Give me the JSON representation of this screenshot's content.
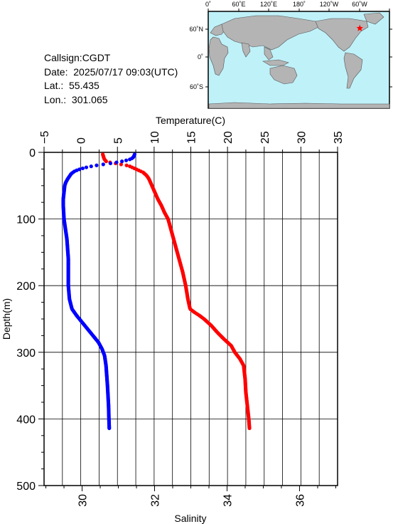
{
  "info": {
    "callsign": "Callsign:CGDT",
    "date": "Date:  2025/07/17 09:03(UTC)",
    "lat": "Lat.:  55.435",
    "lon": "Lon.:  301.065"
  },
  "map": {
    "lon_labels": [
      "0˚",
      "60˚E",
      "120˚E",
      "180˚",
      "120˚W",
      "60˚W"
    ],
    "lat_labels": [
      "60˚N",
      "0˚",
      "60˚S"
    ],
    "station_lat": 55.435,
    "station_lon": 301.065,
    "ocean_color": "#bff1f9",
    "land_color": "#b4b4b4",
    "marker_color": "#ff0000"
  },
  "chart_data": {
    "type": "line",
    "title": "",
    "top_axis": {
      "label": "Temperature(C)",
      "range": [
        -5,
        35
      ],
      "ticks": [
        "−5",
        "0",
        "5",
        "10",
        "15",
        "20",
        "25",
        "30",
        "35"
      ]
    },
    "bottom_axis": {
      "label": "Salinity",
      "range": [
        28.95,
        37.05
      ],
      "ticks": [
        "30",
        "32",
        "34",
        "36"
      ]
    },
    "y_axis": {
      "label": "Depth(m)",
      "range": [
        0,
        500
      ],
      "inverted": true,
      "ticks": [
        "0",
        "100",
        "200",
        "300",
        "400",
        "500"
      ]
    },
    "grid": true,
    "series": [
      {
        "axis": "temperature",
        "color": "#ff0000",
        "depth": [
          3,
          10,
          14,
          17,
          20,
          25,
          30,
          35,
          40,
          50,
          60,
          70,
          80,
          90,
          100,
          120,
          140,
          160,
          180,
          200,
          220,
          235,
          240,
          245,
          250,
          260,
          270,
          280,
          290,
          300,
          310,
          320,
          340,
          360,
          380,
          400,
          415
        ],
        "values": [
          3.0,
          3.2,
          3.5,
          5.0,
          6.5,
          7.5,
          8.5,
          9.0,
          9.3,
          9.7,
          10.1,
          10.5,
          11.0,
          11.4,
          11.9,
          12.4,
          12.9,
          13.4,
          13.9,
          14.3,
          14.6,
          14.9,
          15.5,
          16.2,
          16.8,
          17.8,
          18.6,
          19.5,
          20.5,
          21.0,
          21.7,
          22.2,
          22.4,
          22.5,
          22.7,
          22.9,
          23.0
        ]
      },
      {
        "axis": "salinity",
        "color": "#0000ff",
        "depth": [
          3,
          7,
          10,
          13,
          16,
          19,
          22,
          25,
          28,
          32,
          36,
          40,
          45,
          50,
          60,
          70,
          80,
          100,
          130,
          160,
          200,
          220,
          235,
          245,
          255,
          265,
          275,
          285,
          295,
          305,
          320,
          350,
          380,
          400,
          415
        ],
        "values": [
          31.45,
          31.42,
          31.35,
          31.15,
          30.85,
          30.45,
          30.15,
          29.95,
          29.8,
          29.7,
          29.65,
          29.6,
          29.55,
          29.52,
          29.5,
          29.48,
          29.48,
          29.5,
          29.58,
          29.62,
          29.62,
          29.65,
          29.72,
          29.85,
          30.0,
          30.15,
          30.3,
          30.45,
          30.55,
          30.62,
          30.66,
          30.7,
          30.73,
          30.74,
          30.75
        ]
      }
    ]
  }
}
